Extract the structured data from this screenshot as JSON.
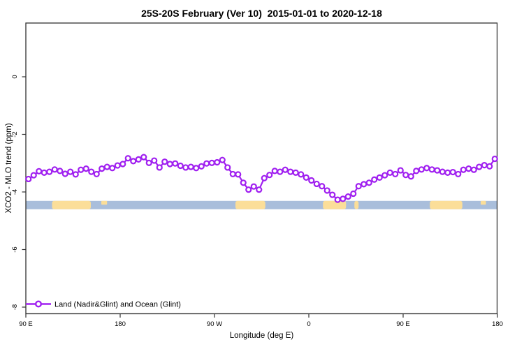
{
  "chart_data": {
    "type": "line",
    "title": "25S-20S February (Ver 10)  2015-01-01 to 2020-12-18",
    "xlabel": "Longitude (deg E)",
    "ylabel": "XCO2 - MLO trend (ppm)",
    "grid": "off",
    "legend_position": "bottom-left-inside",
    "x_axis": {
      "start_lon": 90,
      "end_lon": 540,
      "wraps_globe": true,
      "ticks": [
        {
          "lon": 90,
          "label": "90 E"
        },
        {
          "lon": 180,
          "label": "180"
        },
        {
          "lon": 270,
          "label": "90 W"
        },
        {
          "lon": 360,
          "label": "0"
        },
        {
          "lon": 450,
          "label": "90 E"
        },
        {
          "lon": 540,
          "label": "180"
        }
      ]
    },
    "y_axis": {
      "ylim": [
        -8.2,
        1.87
      ],
      "ticks": [
        0,
        -2,
        -4,
        -6,
        -8
      ],
      "tick_labels": [
        "0",
        "-2",
        "-4",
        "-6",
        "-8"
      ],
      "labels_rotated": true
    },
    "series": [
      {
        "name": "Land (Nadir&Glint) and Ocean (Glint)",
        "color": "#A020F0",
        "marker": "open-circle",
        "x_start": 92.5,
        "x_step": 5,
        "values": [
          -3.55,
          -3.42,
          -3.28,
          -3.33,
          -3.3,
          -3.22,
          -3.27,
          -3.37,
          -3.3,
          -3.39,
          -3.23,
          -3.19,
          -3.3,
          -3.38,
          -3.19,
          -3.13,
          -3.17,
          -3.08,
          -3.03,
          -2.83,
          -2.93,
          -2.87,
          -2.79,
          -2.99,
          -2.91,
          -3.15,
          -2.95,
          -3.03,
          -3.01,
          -3.09,
          -3.15,
          -3.13,
          -3.17,
          -3.11,
          -3.01,
          -2.99,
          -2.97,
          -2.89,
          -3.15,
          -3.38,
          -3.39,
          -3.68,
          -3.92,
          -3.81,
          -3.92,
          -3.52,
          -3.41,
          -3.27,
          -3.3,
          -3.23,
          -3.3,
          -3.33,
          -3.39,
          -3.5,
          -3.6,
          -3.72,
          -3.8,
          -3.95,
          -4.1,
          -4.27,
          -4.24,
          -4.16,
          -4.06,
          -3.8,
          -3.73,
          -3.68,
          -3.57,
          -3.5,
          -3.42,
          -3.33,
          -3.38,
          -3.25,
          -3.41,
          -3.46,
          -3.27,
          -3.22,
          -3.17,
          -3.22,
          -3.25,
          -3.3,
          -3.33,
          -3.31,
          -3.38,
          -3.23,
          -3.19,
          -3.23,
          -3.13,
          -3.07,
          -3.11,
          -2.85
        ]
      }
    ],
    "surface_band": {
      "description": "land/ocean strip along latitude band",
      "ocean_color": "#A9BEDB",
      "land_color": "#FBDE99",
      "value_top": -4.31,
      "value_bottom": -4.6,
      "ocean_range": [
        90,
        540
      ],
      "land_segments": [
        {
          "name": "australia",
          "range": [
            115,
            152
          ],
          "partial": false
        },
        {
          "name": "new-caledonia",
          "range": [
            162,
            167.5
          ],
          "partial": true
        },
        {
          "name": "south-america",
          "range": [
            290,
            318.5
          ],
          "partial": false
        },
        {
          "name": "africa",
          "range": [
            373.5,
            395.5
          ],
          "partial": false
        },
        {
          "name": "madagascar",
          "range": [
            403.5,
            407.5
          ],
          "partial": false
        },
        {
          "name": "australia-wrap",
          "range": [
            475.5,
            506.5
          ],
          "partial": false
        },
        {
          "name": "new-caledonia-wrap",
          "range": [
            524,
            529
          ],
          "partial": true
        }
      ]
    },
    "legend": {
      "label": "Land (Nadir&Glint) and Ocean (Glint)"
    },
    "frame_color": "#333333",
    "text_color": "#000000"
  }
}
